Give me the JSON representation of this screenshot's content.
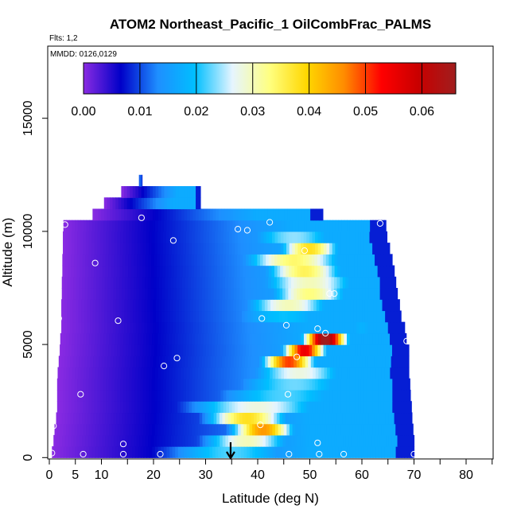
{
  "chart_data": {
    "type": "heatmap",
    "title": "ATOM2 Northeast_Pacific_1 OilCombFrac_PALMS",
    "subtitle_flights": "Flts: 1,2",
    "subtitle_dates": "MMDD: 0126,0129",
    "xlabel": "Latitude (deg N)",
    "ylabel": "Altitude (m)",
    "xlim": [
      0,
      85
    ],
    "ylim": [
      0,
      17500
    ],
    "x_ticks": [
      0,
      5,
      10,
      20,
      30,
      40,
      50,
      60,
      70,
      80
    ],
    "y_ticks": [
      0,
      5000,
      10000,
      15000
    ],
    "colorbar": {
      "range": [
        0,
        0.066
      ],
      "ticks": [
        "0.00",
        "0.01",
        "0.02",
        "0.03",
        "0.04",
        "0.05",
        "0.06"
      ],
      "tick_values": [
        0,
        0.01,
        0.02,
        0.03,
        0.04,
        0.05,
        0.06
      ],
      "colors": [
        "#8a2be2",
        "#0000c8",
        "#1e8fff",
        "#00bfff",
        "#e6f5ff",
        "#ffff80",
        "#ffd700",
        "#ff8c00",
        "#ff0000",
        "#c80000",
        "#a01e1e"
      ]
    },
    "layers": [
      {
        "alt": 250,
        "lat_start": 0.5,
        "lat_end": 70,
        "peaks": [
          {
            "lat": 35,
            "val": 0.022,
            "w": 14
          }
        ]
      },
      {
        "alt": 750,
        "lat_start": 0.8,
        "lat_end": 70,
        "peaks": [
          {
            "lat": 38,
            "val": 0.03,
            "w": 9
          }
        ]
      },
      {
        "alt": 1250,
        "lat_start": 1.0,
        "lat_end": 69.8,
        "peaks": [
          {
            "lat": 41,
            "val": 0.045,
            "w": 6
          }
        ]
      },
      {
        "alt": 1750,
        "lat_start": 1.3,
        "lat_end": 69.6,
        "peaks": [
          {
            "lat": 38,
            "val": 0.038,
            "w": 8
          }
        ]
      },
      {
        "alt": 2250,
        "lat_start": 1.5,
        "lat_end": 69.5,
        "peaks": [
          {
            "lat": 40,
            "val": 0.028,
            "w": 14
          }
        ]
      },
      {
        "alt": 2750,
        "lat_start": 1.5,
        "lat_end": 69.3,
        "peaks": [
          {
            "lat": 45,
            "val": 0.022,
            "w": 15
          }
        ]
      },
      {
        "alt": 3250,
        "lat_start": 1.5,
        "lat_end": 69.2,
        "peaks": [
          {
            "lat": 47,
            "val": 0.023,
            "w": 13
          }
        ]
      },
      {
        "alt": 3750,
        "lat_start": 1.6,
        "lat_end": 69.0,
        "peaks": [
          {
            "lat": 48,
            "val": 0.028,
            "w": 10
          }
        ]
      },
      {
        "alt": 4250,
        "lat_start": 1.8,
        "lat_end": 69.0,
        "peaks": [
          {
            "lat": 46,
            "val": 0.05,
            "w": 5
          }
        ]
      },
      {
        "alt": 4750,
        "lat_start": 2.0,
        "lat_end": 69.0,
        "peaks": [
          {
            "lat": 49,
            "val": 0.055,
            "w": 4
          }
        ]
      },
      {
        "alt": 5250,
        "lat_start": 2.1,
        "lat_end": 68.5,
        "peaks": [
          {
            "lat": 53,
            "val": 0.066,
            "w": 4
          }
        ]
      },
      {
        "alt": 5750,
        "lat_start": 2.3,
        "lat_end": 68.2,
        "peaks": [
          {
            "lat": 60,
            "val": 0.018,
            "w": 5
          }
        ]
      },
      {
        "alt": 6250,
        "lat_start": 2.3,
        "lat_end": 67.5,
        "peaks": [
          {
            "lat": 45,
            "val": 0.02,
            "w": 12
          }
        ]
      },
      {
        "alt": 6750,
        "lat_start": 2.3,
        "lat_end": 67.2,
        "peaks": [
          {
            "lat": 46,
            "val": 0.03,
            "w": 9
          }
        ]
      },
      {
        "alt": 7250,
        "lat_start": 2.4,
        "lat_end": 66.8,
        "peaks": [
          {
            "lat": 50,
            "val": 0.033,
            "w": 8
          }
        ]
      },
      {
        "alt": 7750,
        "lat_start": 2.4,
        "lat_end": 66.5,
        "peaks": [
          {
            "lat": 50,
            "val": 0.03,
            "w": 10
          }
        ]
      },
      {
        "alt": 8250,
        "lat_start": 2.5,
        "lat_end": 66.2,
        "peaks": [
          {
            "lat": 49,
            "val": 0.035,
            "w": 8
          }
        ]
      },
      {
        "alt": 8750,
        "lat_start": 2.5,
        "lat_end": 65.8,
        "peaks": [
          {
            "lat": 47,
            "val": 0.034,
            "w": 10
          }
        ]
      },
      {
        "alt": 9250,
        "lat_start": 2.6,
        "lat_end": 65.3,
        "peaks": [
          {
            "lat": 50,
            "val": 0.038,
            "w": 6
          }
        ]
      },
      {
        "alt": 9750,
        "lat_start": 2.6,
        "lat_end": 64.8,
        "peaks": [
          {
            "lat": 47,
            "val": 0.024,
            "w": 10
          }
        ]
      },
      {
        "alt": 10250,
        "lat_start": 2.7,
        "lat_end": 64.6,
        "peaks": [
          {
            "lat": 46,
            "val": 0.012,
            "w": 14
          }
        ]
      },
      {
        "alt": 10750,
        "lat_start": 8.3,
        "lat_end": 52.5,
        "peaks": [
          {
            "lat": 38,
            "val": 0.009,
            "w": 15
          }
        ]
      },
      {
        "alt": 11250,
        "lat_start": 10.5,
        "lat_end": 29,
        "peaks": [
          {
            "lat": 26,
            "val": 0.008,
            "w": 4
          }
        ]
      },
      {
        "alt": 11750,
        "lat_start": 13.8,
        "lat_end": 29,
        "peaks": [
          {
            "lat": 25,
            "val": 0.008,
            "w": 4
          }
        ]
      },
      {
        "alt": 12250,
        "lat_start": 17.2,
        "lat_end": 17.8,
        "peaks": []
      }
    ],
    "samples": [
      {
        "lat": 0.5,
        "alt": 200
      },
      {
        "lat": 6.5,
        "alt": 150
      },
      {
        "lat": 14.2,
        "alt": 150
      },
      {
        "lat": 21.3,
        "alt": 150
      },
      {
        "lat": 46.0,
        "alt": 150
      },
      {
        "lat": 51.8,
        "alt": 150
      },
      {
        "lat": 56.5,
        "alt": 150
      },
      {
        "lat": 70.0,
        "alt": 150
      },
      {
        "lat": 14.2,
        "alt": 600
      },
      {
        "lat": 51.5,
        "alt": 650
      },
      {
        "lat": 0.8,
        "alt": 1400
      },
      {
        "lat": 40.5,
        "alt": 1450
      },
      {
        "lat": 6.0,
        "alt": 2800
      },
      {
        "lat": 45.8,
        "alt": 2800
      },
      {
        "lat": 22.0,
        "alt": 4050
      },
      {
        "lat": 24.5,
        "alt": 4400
      },
      {
        "lat": 47.5,
        "alt": 4450
      },
      {
        "lat": 1.2,
        "alt": 4750
      },
      {
        "lat": 68.6,
        "alt": 5150
      },
      {
        "lat": 53.0,
        "alt": 5500
      },
      {
        "lat": 51.5,
        "alt": 5700
      },
      {
        "lat": 45.5,
        "alt": 5850
      },
      {
        "lat": 1.8,
        "alt": 6150
      },
      {
        "lat": 13.2,
        "alt": 6050
      },
      {
        "lat": 40.8,
        "alt": 6150
      },
      {
        "lat": 53.8,
        "alt": 7250
      },
      {
        "lat": 54.7,
        "alt": 7250
      },
      {
        "lat": 8.8,
        "alt": 8600
      },
      {
        "lat": 49.0,
        "alt": 9150
      },
      {
        "lat": 23.8,
        "alt": 9600
      },
      {
        "lat": 17.7,
        "alt": 10600
      },
      {
        "lat": 36.2,
        "alt": 10100
      },
      {
        "lat": 38.0,
        "alt": 10050
      },
      {
        "lat": 42.3,
        "alt": 10400
      },
      {
        "lat": 63.5,
        "alt": 10350
      },
      {
        "lat": 3.0,
        "alt": 10300
      }
    ],
    "arrow_lat": 34.8
  }
}
